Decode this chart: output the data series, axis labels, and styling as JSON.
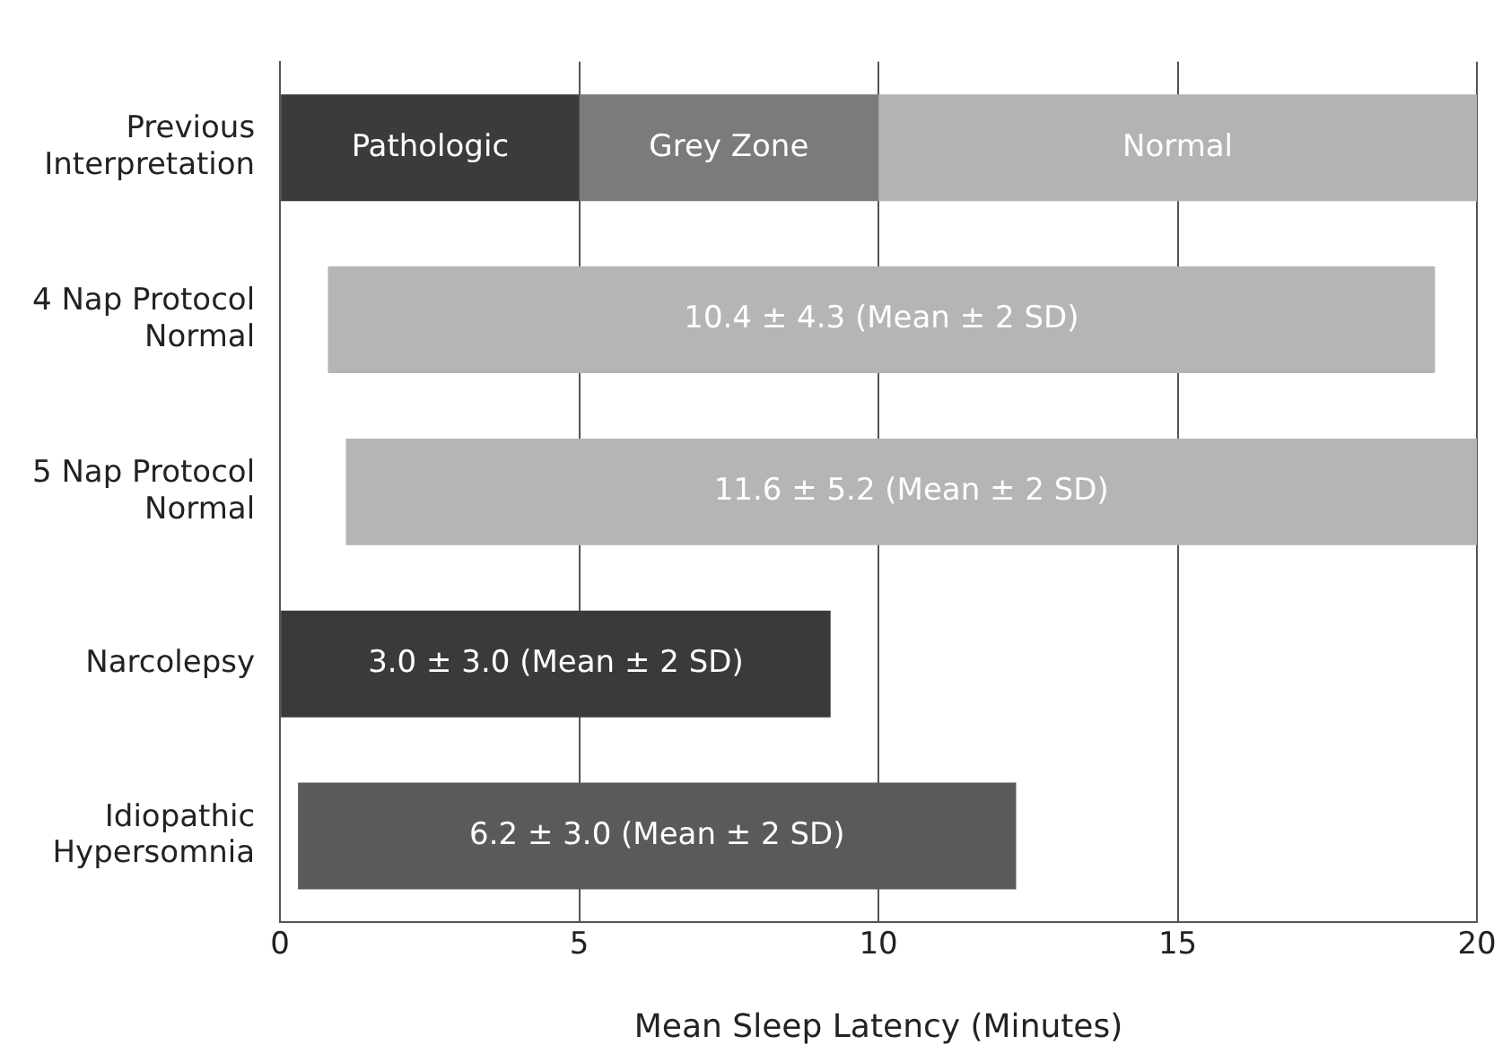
{
  "chart_data": {
    "type": "bar",
    "orientation": "horizontal",
    "xlabel": "Mean Sleep Latency (Minutes)",
    "categories": [
      "Previous Interpretation",
      "4 Nap Protocol Normal",
      "5 Nap Protocol Normal",
      "Narcolepsy",
      "Idiopathic Hypersomnia"
    ],
    "xlim": [
      0,
      20
    ],
    "xticks": [
      0,
      5,
      10,
      15,
      20
    ],
    "grid": "x",
    "legend": false,
    "series": [
      {
        "name": "Pathologic",
        "color": "#3b3b3b",
        "base": [
          0,
          null,
          null,
          null,
          null
        ],
        "values": [
          5,
          null,
          null,
          null,
          null
        ]
      },
      {
        "name": "Grey Zone",
        "color": "#7b7b7b",
        "base": [
          5,
          null,
          null,
          null,
          null
        ],
        "values": [
          5,
          null,
          null,
          null,
          null
        ]
      },
      {
        "name": "Normal",
        "color": "#b3b3b3",
        "base": [
          10,
          null,
          null,
          null,
          null
        ],
        "values": [
          10,
          null,
          null,
          null,
          null
        ]
      },
      {
        "colors": [
          null,
          "#b5b5b5",
          "#b5b5b5",
          "#3a3a3a",
          "#5a5a5a"
        ],
        "base": [
          null,
          0.8,
          1.1,
          0,
          0.3
        ],
        "values": [
          null,
          18.5,
          18.9,
          9.2,
          12.0
        ]
      }
    ],
    "annotations": [
      "10.4 ± 4.3 (Mean ± 2 SD)",
      "11.6 ± 5.2 (Mean ± 2 SD)",
      "3.0 ± 3.0 (Mean ± 2 SD)",
      "6.2 ± 3.0 (Mean ± 2 SD)"
    ]
  }
}
